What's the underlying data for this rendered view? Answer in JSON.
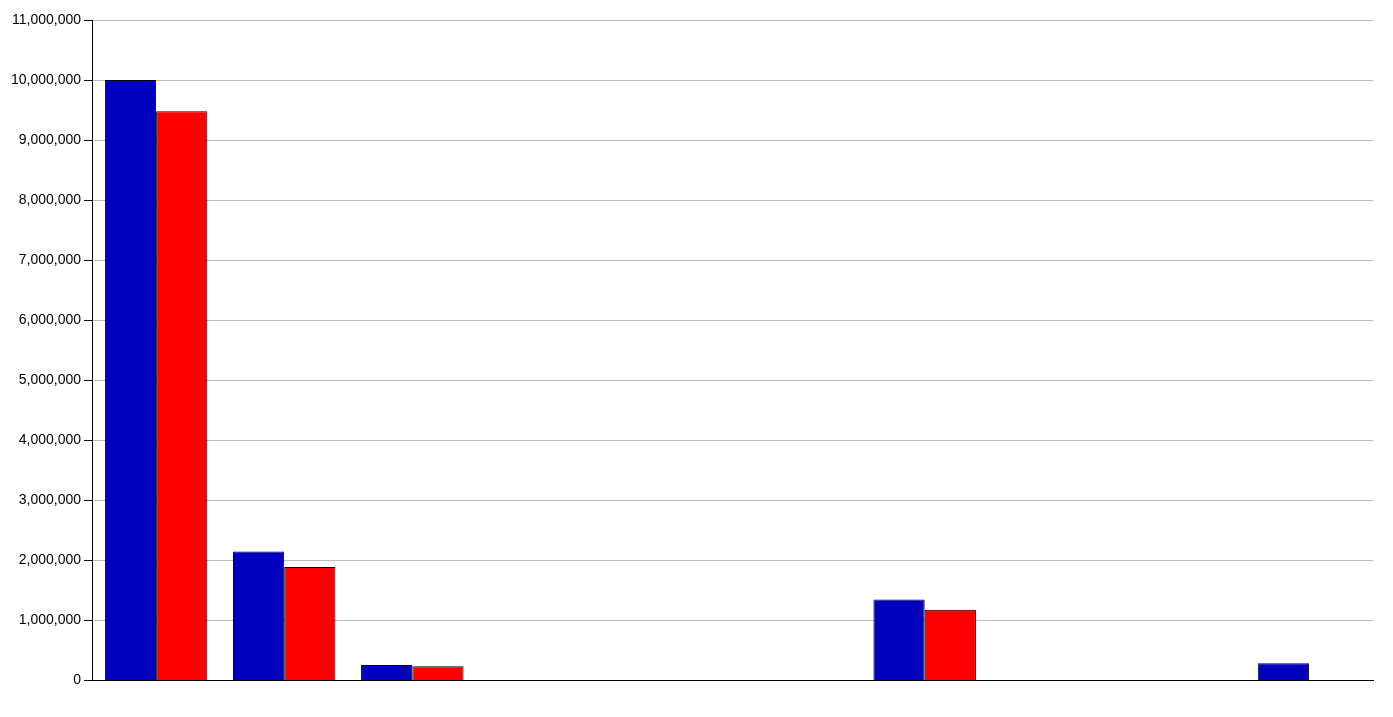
{
  "chart_data": {
    "type": "bar",
    "categories": [
      null,
      null,
      null,
      null,
      null,
      null,
      null,
      null,
      null,
      null
    ],
    "series": [
      {
        "color": "#0000c0",
        "values": [
          10000000,
          2150000,
          260000,
          0,
          0,
          0,
          1350000,
          0,
          0,
          290000
        ]
      },
      {
        "color": "#ff0000",
        "values": [
          9480000,
          1890000,
          240000,
          0,
          0,
          0,
          1180000,
          0,
          0,
          0
        ]
      }
    ],
    "ylim": [
      0,
      11000000
    ],
    "yticks": [
      {
        "value": 0,
        "label": "0"
      },
      {
        "value": 1000000,
        "label": "1,000,000"
      },
      {
        "value": 2000000,
        "label": "2,000,000"
      },
      {
        "value": 3000000,
        "label": "3,000,000"
      },
      {
        "value": 4000000,
        "label": "4,000,000"
      },
      {
        "value": 5000000,
        "label": "5,000,000"
      },
      {
        "value": 6000000,
        "label": "6,000,000"
      },
      {
        "value": 7000000,
        "label": "7,000,000"
      },
      {
        "value": 8000000,
        "label": "8,000,000"
      },
      {
        "value": 9000000,
        "label": "9,000,000"
      },
      {
        "value": 10000000,
        "label": "10,000,000"
      },
      {
        "value": 11000000,
        "label": "11,000,000"
      }
    ],
    "grid": "y",
    "legend": false
  }
}
